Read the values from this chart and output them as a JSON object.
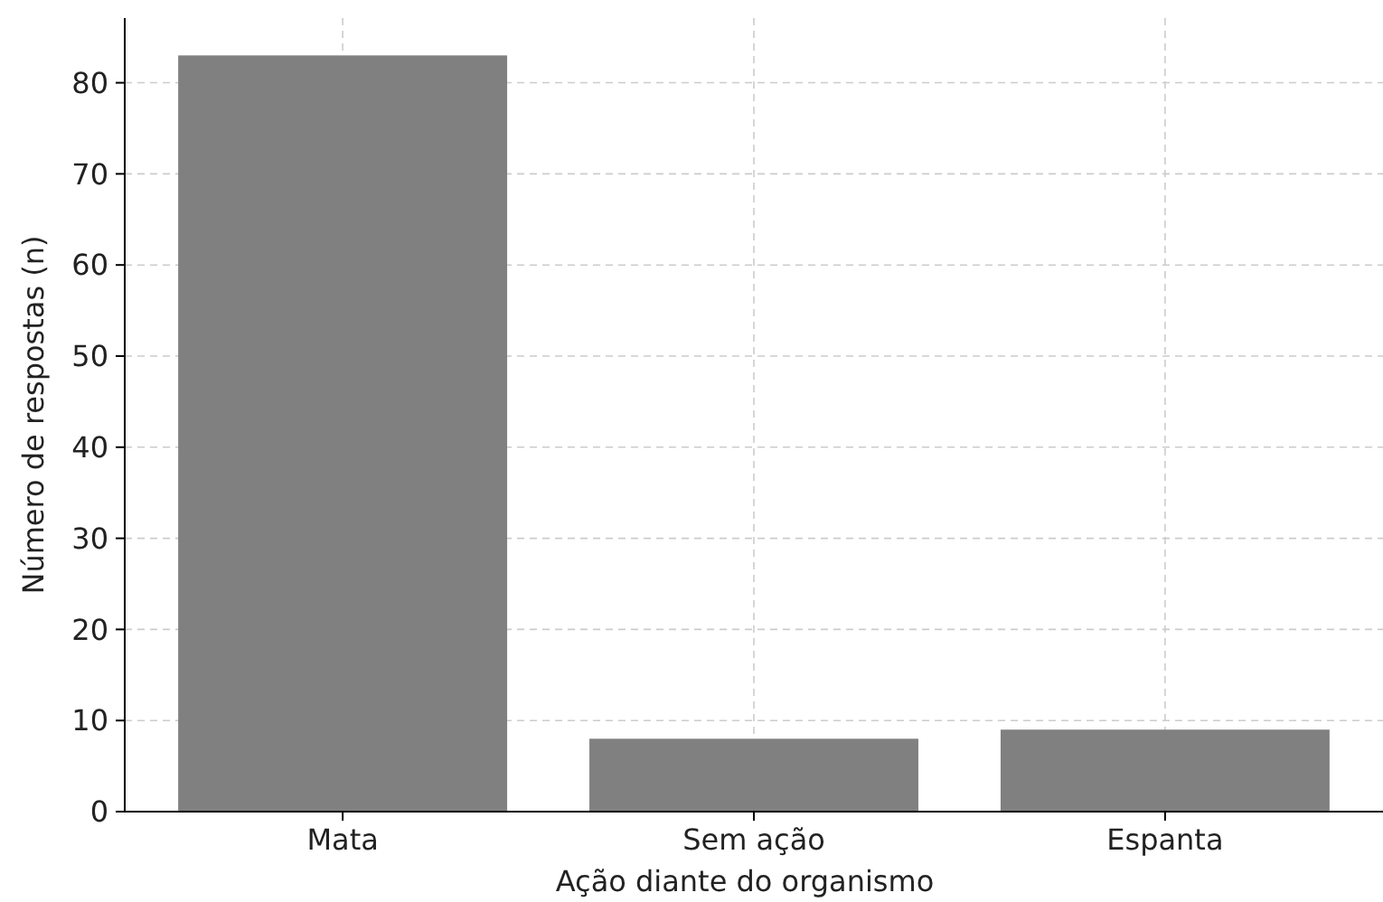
{
  "chart_data": {
    "type": "bar",
    "xlabel": "Ação diante do organismo",
    "ylabel": "Número de respostas (n)",
    "categories": [
      "Mata",
      "Sem ação",
      "Espanta"
    ],
    "values": [
      83,
      8,
      9
    ],
    "color": "#808080",
    "ylim": [
      0,
      87.1
    ],
    "yticks": [
      0,
      10,
      20,
      30,
      40,
      50,
      60,
      70,
      80
    ],
    "grid": true
  }
}
